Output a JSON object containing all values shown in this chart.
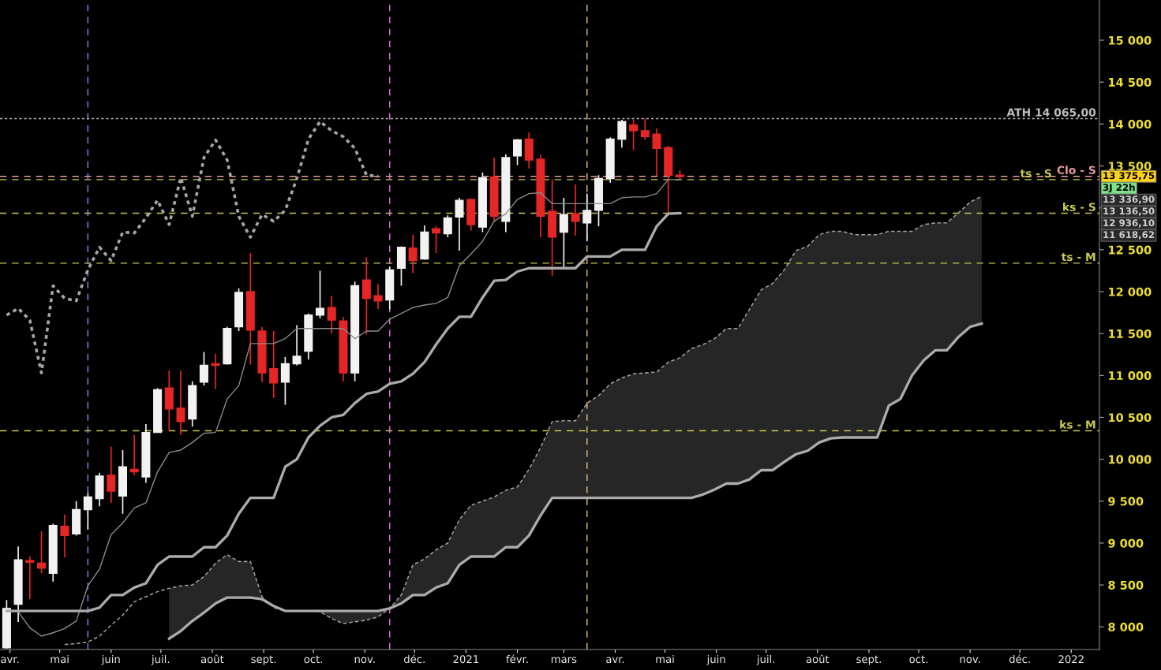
{
  "chart_data": {
    "type": "candlestick",
    "x": [
      "2020-03-30",
      "2020-04-06",
      "2020-04-13",
      "2020-04-20",
      "2020-04-27",
      "2020-05-04",
      "2020-05-11",
      "2020-05-18",
      "2020-05-25",
      "2020-06-01",
      "2020-06-08",
      "2020-06-15",
      "2020-06-22",
      "2020-06-29",
      "2020-07-06",
      "2020-07-13",
      "2020-07-20",
      "2020-07-27",
      "2020-08-03",
      "2020-08-10",
      "2020-08-17",
      "2020-08-24",
      "2020-08-31",
      "2020-09-07",
      "2020-09-14",
      "2020-09-21",
      "2020-09-28",
      "2020-10-05",
      "2020-10-12",
      "2020-10-19",
      "2020-10-26",
      "2020-11-02",
      "2020-11-09",
      "2020-11-16",
      "2020-11-23",
      "2020-11-30",
      "2020-12-07",
      "2020-12-14",
      "2020-12-21",
      "2020-12-28",
      "2021-01-04",
      "2021-01-11",
      "2021-01-18",
      "2021-01-25",
      "2021-02-01",
      "2021-02-08",
      "2021-02-15",
      "2021-02-22",
      "2021-03-01",
      "2021-03-08",
      "2021-03-15",
      "2021-03-22",
      "2021-03-29",
      "2021-04-05",
      "2021-04-12",
      "2021-04-19",
      "2021-04-26",
      "2021-05-03",
      "2021-05-10"
    ],
    "ohlc": [
      [
        7750,
        8320,
        7740,
        8220
      ],
      [
        8270,
        8960,
        8060,
        8800
      ],
      [
        8790,
        8840,
        8330,
        8770
      ],
      [
        8760,
        9140,
        8640,
        8700
      ],
      [
        8640,
        9230,
        8540,
        9210
      ],
      [
        9200,
        9340,
        8830,
        9090
      ],
      [
        9110,
        9500,
        9090,
        9400
      ],
      [
        9400,
        9600,
        9160,
        9550
      ],
      [
        9530,
        9840,
        9440,
        9800
      ],
      [
        9810,
        10150,
        9480,
        9620
      ],
      [
        9560,
        10110,
        9350,
        9910
      ],
      [
        9880,
        10290,
        9810,
        9850
      ],
      [
        9790,
        10420,
        9720,
        10320
      ],
      [
        10320,
        10850,
        10320,
        10830
      ],
      [
        10850,
        11060,
        10340,
        10600
      ],
      [
        10610,
        11060,
        10290,
        10450
      ],
      [
        10480,
        10930,
        10390,
        10880
      ],
      [
        10920,
        11280,
        10880,
        11120
      ],
      [
        11140,
        11260,
        10840,
        11120
      ],
      [
        11140,
        11580,
        11130,
        11560
      ],
      [
        11580,
        12040,
        11530,
        11990
      ],
      [
        12000,
        12460,
        11130,
        11540
      ],
      [
        11530,
        11580,
        10920,
        11030
      ],
      [
        11080,
        11530,
        10730,
        10910
      ],
      [
        10920,
        11220,
        10650,
        11140
      ],
      [
        11140,
        11600,
        11120,
        11230
      ],
      [
        11290,
        11740,
        11190,
        11720
      ],
      [
        11720,
        12250,
        11680,
        11800
      ],
      [
        11810,
        11950,
        11500,
        11660
      ],
      [
        11650,
        11700,
        10930,
        11030
      ],
      [
        11030,
        12120,
        10930,
        12070
      ],
      [
        12140,
        12410,
        11490,
        11920
      ],
      [
        11950,
        12090,
        11790,
        11890
      ],
      [
        11900,
        12300,
        11790,
        12260
      ],
      [
        12280,
        12540,
        12070,
        12530
      ],
      [
        12520,
        12680,
        12220,
        12370
      ],
      [
        12390,
        12790,
        12380,
        12710
      ],
      [
        12750,
        12780,
        12460,
        12700
      ],
      [
        12690,
        12910,
        12650,
        12880
      ],
      [
        12890,
        13120,
        12490,
        13090
      ],
      [
        13100,
        13110,
        12730,
        12800
      ],
      [
        12770,
        13420,
        12710,
        13360
      ],
      [
        13370,
        13600,
        12830,
        12900
      ],
      [
        12840,
        13640,
        12710,
        13600
      ],
      [
        13620,
        13820,
        13510,
        13810
      ],
      [
        13820,
        13900,
        13470,
        13570
      ],
      [
        13580,
        13630,
        12650,
        12900
      ],
      [
        12960,
        13340,
        12190,
        12650
      ],
      [
        12710,
        13120,
        12280,
        12920
      ],
      [
        12930,
        13280,
        12670,
        12840
      ],
      [
        12820,
        13170,
        12600,
        12970
      ],
      [
        12970,
        13390,
        12780,
        13350
      ],
      [
        13350,
        13840,
        13300,
        13820
      ],
      [
        13820,
        14050,
        13720,
        14030
      ],
      [
        13990,
        14050,
        13690,
        13920
      ],
      [
        13920,
        14065,
        13810,
        13850
      ],
      [
        13880,
        13950,
        13380,
        13710
      ],
      [
        13720,
        13740,
        12940,
        13390
      ],
      [
        13390,
        13450,
        13340,
        13375.75
      ]
    ],
    "colors": [
      "#f2f2f2",
      "#f2f2f2",
      "#e52626",
      "#e52626",
      "#f2f2f2",
      "#e52626",
      "#f2f2f2",
      "#f2f2f2",
      "#f2f2f2",
      "#e52626",
      "#f2f2f2",
      "#e52626",
      "#f2f2f2",
      "#f2f2f2",
      "#e52626",
      "#e52626",
      "#f2f2f2",
      "#f2f2f2",
      "#e52626",
      "#f2f2f2",
      "#f2f2f2",
      "#e52626",
      "#e52626",
      "#e52626",
      "#f2f2f2",
      "#f2f2f2",
      "#f2f2f2",
      "#f2f2f2",
      "#e52626",
      "#e52626",
      "#f2f2f2",
      "#e52626",
      "#e52626",
      "#f2f2f2",
      "#f2f2f2",
      "#e52626",
      "#f2f2f2",
      "#e52626",
      "#f2f2f2",
      "#f2f2f2",
      "#e52626",
      "#f2f2f2",
      "#e52626",
      "#f2f2f2",
      "#f2f2f2",
      "#e52626",
      "#e52626",
      "#e52626",
      "#f2f2f2",
      "#e52626",
      "#f2f2f2",
      "#f2f2f2",
      "#f2f2f2",
      "#f2f2f2",
      "#e52626",
      "#e52626",
      "#e52626",
      "#e52626",
      "#e52626"
    ],
    "series": [
      {
        "type": "line",
        "color": "#8c8c8c",
        "values": [
          null,
          8180,
          7990,
          7890,
          7930,
          7980,
          8070,
          8490,
          8690,
          9100,
          9240,
          9420,
          9480,
          9850,
          10080,
          10110,
          10200,
          10310,
          10320,
          10720,
          10880,
          11380,
          11380,
          11380,
          11440,
          11560,
          11560,
          11560,
          11560,
          11560,
          11440,
          11530,
          11530,
          11670,
          11740,
          11810,
          11840,
          11860,
          11930,
          12310,
          12450,
          12600,
          12840,
          12930,
          13100,
          13170,
          13180,
          13050,
          13050,
          13050,
          13050,
          13050,
          13050,
          13120,
          13130,
          13130,
          13170,
          13336.9,
          13336.9
        ]
      },
      {
        "type": "line",
        "color": "#ababab",
        "values": [
          8190,
          8190,
          8190,
          8190,
          8190,
          8190,
          8190,
          8190,
          8230,
          8380,
          8380,
          8470,
          8520,
          8740,
          8840,
          8840,
          8840,
          8950,
          8950,
          9090,
          9350,
          9540,
          9540,
          9540,
          9910,
          10000,
          10260,
          10400,
          10500,
          10530,
          10670,
          10780,
          10810,
          10900,
          10930,
          11020,
          11160,
          11370,
          11560,
          11700,
          11700,
          11930,
          12130,
          12140,
          12240,
          12280,
          12280,
          12280,
          12280,
          12280,
          12420,
          12420,
          12420,
          12500,
          12500,
          12500,
          12780,
          12930,
          12936.1
        ]
      },
      {
        "type": "line",
        "color": "#a6a6a6",
        "line_style": "dotted",
        "x": [
          "2020-03-30",
          "2020-04-06",
          "2020-04-13",
          "2020-04-20",
          "2020-04-27",
          "2020-05-04",
          "2020-05-11",
          "2020-05-18",
          "2020-05-25",
          "2020-06-01",
          "2020-06-08",
          "2020-06-15",
          "2020-06-22",
          "2020-06-29",
          "2020-07-06",
          "2020-07-13",
          "2020-07-20",
          "2020-07-27",
          "2020-08-03",
          "2020-08-10",
          "2020-08-17",
          "2020-08-24",
          "2020-08-31",
          "2020-09-07",
          "2020-09-14",
          "2020-09-21",
          "2020-09-28",
          "2020-10-05",
          "2020-10-12",
          "2020-10-19",
          "2020-10-26",
          "2020-11-02",
          "2020-11-09"
        ],
        "values": [
          11720,
          11800,
          11660,
          11030,
          12070,
          11920,
          11890,
          12260,
          12530,
          12370,
          12710,
          12700,
          12880,
          13090,
          12800,
          13360,
          12900,
          13600,
          13810,
          13570,
          12900,
          12650,
          12920,
          12840,
          12970,
          13350,
          13820,
          14030,
          13920,
          13850,
          13710,
          13390,
          13375.75
        ]
      },
      {
        "type": "line",
        "color": "#a0a0a0",
        "line_style": "dashed",
        "x": [
          "2020-05-04",
          "2020-05-11",
          "2020-05-18",
          "2020-05-25",
          "2020-06-01",
          "2020-06-08",
          "2020-06-15",
          "2020-06-22",
          "2020-06-29",
          "2020-07-06",
          "2020-07-13",
          "2020-07-20",
          "2020-07-27",
          "2020-08-03",
          "2020-08-10",
          "2020-08-17",
          "2020-08-24",
          "2020-08-31",
          "2020-09-07",
          "2020-09-14",
          "2020-09-21",
          "2020-09-28",
          "2020-10-05",
          "2020-10-12",
          "2020-10-19",
          "2020-10-26",
          "2020-11-02",
          "2020-11-09",
          "2020-11-16",
          "2020-11-23",
          "2020-11-30",
          "2020-12-07",
          "2020-12-14",
          "2020-12-21",
          "2020-12-28",
          "2021-01-04",
          "2021-01-11",
          "2021-01-18",
          "2021-01-25",
          "2021-02-01",
          "2021-02-08",
          "2021-02-15",
          "2021-02-22",
          "2021-03-01",
          "2021-03-08",
          "2021-03-15",
          "2021-03-22",
          "2021-03-29",
          "2021-04-05",
          "2021-04-12",
          "2021-04-19",
          "2021-04-26",
          "2021-05-03",
          "2021-05-10",
          "2021-05-17",
          "2021-05-24",
          "2021-05-31",
          "2021-06-07",
          "2021-06-14",
          "2021-06-21",
          "2021-06-28",
          "2021-07-05",
          "2021-07-12",
          "2021-07-19",
          "2021-07-26",
          "2021-08-02",
          "2021-08-09",
          "2021-08-16",
          "2021-08-23",
          "2021-08-30",
          "2021-09-06",
          "2021-09-13",
          "2021-09-20",
          "2021-09-27",
          "2021-10-04",
          "2021-10-11",
          "2021-10-18",
          "2021-10-25",
          "2021-11-01",
          "2021-11-08"
        ],
        "values": [
          7790,
          7800,
          7820,
          7890,
          8020,
          8140,
          8300,
          8360,
          8420,
          8460,
          8490,
          8500,
          8600,
          8760,
          8860,
          8780,
          8780,
          8360,
          8230,
          8190,
          8190,
          8190,
          8180,
          8100,
          8040,
          8060,
          8080,
          8120,
          8220,
          8380,
          8740,
          8810,
          8920,
          9000,
          9280,
          9450,
          9500,
          9550,
          9630,
          9670,
          9880,
          10140,
          10450,
          10460,
          10460,
          10670,
          10760,
          10900,
          10970,
          11020,
          11030,
          11040,
          11160,
          11210,
          11320,
          11370,
          11440,
          11560,
          11560,
          11790,
          12020,
          12100,
          12260,
          12490,
          12540,
          12680,
          12720,
          12720,
          12680,
          12680,
          12680,
          12720,
          12720,
          12720,
          12800,
          12820,
          12820,
          12940,
          13070,
          13136.5
        ]
      },
      {
        "type": "line",
        "color": "#ababab",
        "x": [
          "2020-07-06",
          "2020-07-13",
          "2020-07-20",
          "2020-07-27",
          "2020-08-03",
          "2020-08-10",
          "2020-08-17",
          "2020-08-24",
          "2020-08-31",
          "2020-09-07",
          "2020-09-14",
          "2020-09-21",
          "2020-09-28",
          "2020-10-05",
          "2020-10-12",
          "2020-10-19",
          "2020-10-26",
          "2020-11-02",
          "2020-11-09",
          "2020-11-16",
          "2020-11-23",
          "2020-11-30",
          "2020-12-07",
          "2020-12-14",
          "2020-12-21",
          "2020-12-28",
          "2021-01-04",
          "2021-01-11",
          "2021-01-18",
          "2021-01-25",
          "2021-02-01",
          "2021-02-08",
          "2021-02-15",
          "2021-02-22",
          "2021-03-01",
          "2021-03-08",
          "2021-03-15",
          "2021-03-22",
          "2021-03-29",
          "2021-04-05",
          "2021-04-12",
          "2021-04-19",
          "2021-04-26",
          "2021-05-03",
          "2021-05-10",
          "2021-05-17",
          "2021-05-24",
          "2021-05-31",
          "2021-06-07",
          "2021-06-14",
          "2021-06-21",
          "2021-06-28",
          "2021-07-05",
          "2021-07-12",
          "2021-07-19",
          "2021-07-26",
          "2021-08-02",
          "2021-08-09",
          "2021-08-16",
          "2021-08-23",
          "2021-08-30",
          "2021-09-06",
          "2021-09-13",
          "2021-09-20",
          "2021-09-27",
          "2021-10-04",
          "2021-10-11",
          "2021-10-18",
          "2021-10-25",
          "2021-11-01",
          "2021-11-08"
        ],
        "values": [
          7860,
          7950,
          8070,
          8170,
          8280,
          8350,
          8350,
          8350,
          8330,
          8250,
          8190,
          8190,
          8190,
          8190,
          8190,
          8190,
          8190,
          8190,
          8190,
          8220,
          8280,
          8380,
          8380,
          8470,
          8520,
          8740,
          8840,
          8840,
          8840,
          8950,
          8950,
          9090,
          9330,
          9540,
          9540,
          9540,
          9540,
          9540,
          9540,
          9540,
          9540,
          9540,
          9540,
          9540,
          9540,
          9540,
          9580,
          9640,
          9710,
          9710,
          9760,
          9870,
          9870,
          9970,
          10060,
          10100,
          10200,
          10250,
          10260,
          10260,
          10260,
          10260,
          10640,
          10720,
          11000,
          11180,
          11300,
          11300,
          11460,
          11580,
          11618.62
        ],
        "lower": [
          7860,
          7950,
          8070,
          8170,
          8280,
          8350,
          8350,
          8350,
          8330,
          8250,
          8190,
          8190,
          8190,
          8190,
          8190,
          8190,
          8190,
          8190,
          8190,
          8220,
          8280,
          8380,
          8380,
          8470,
          8520,
          8740,
          8840,
          8840,
          8840,
          8950,
          8950,
          9090,
          9330,
          9540,
          9540,
          9540,
          9540,
          9540,
          9540,
          9540,
          9540,
          9540,
          9540,
          9540,
          9540,
          9540,
          9580,
          9640,
          9710,
          9710,
          9760,
          9870,
          9870,
          9970,
          10060,
          10100,
          10200,
          10250,
          10260,
          10260,
          10260,
          10260,
          10640,
          10720,
          11000,
          11180,
          11300,
          11300,
          11460,
          11580,
          11618.62
        ],
        "upper": [
          8460,
          8490,
          8500,
          8600,
          8760,
          8860,
          8780,
          8780,
          8360,
          8230,
          8190,
          8190,
          8190,
          8180,
          8100,
          8040,
          8060,
          8080,
          8120,
          8220,
          8380,
          8740,
          8810,
          8920,
          9000,
          9280,
          9450,
          9500,
          9550,
          9630,
          9670,
          9880,
          10140,
          10450,
          10460,
          10460,
          10670,
          10760,
          10900,
          10970,
          11020,
          11030,
          11040,
          11160,
          11210,
          11320,
          11370,
          11440,
          11560,
          11560,
          11790,
          12020,
          12100,
          12260,
          12490,
          12540,
          12680,
          12720,
          12720,
          12680,
          12680,
          12680,
          12720,
          12720,
          12720,
          12800,
          12820,
          12820,
          12940,
          13070,
          13136.5
        ]
      }
    ],
    "xlim": [
      "2020-03-26",
      "2022-01-18"
    ],
    "xticks": [
      {
        "value": "2020-04-01",
        "label": "avr."
      },
      {
        "value": "2020-05-01",
        "label": "mai"
      },
      {
        "value": "2020-06-01",
        "label": "juin"
      },
      {
        "value": "2020-07-01",
        "label": "juil."
      },
      {
        "value": "2020-08-01",
        "label": "août"
      },
      {
        "value": "2020-09-01",
        "label": "sept."
      },
      {
        "value": "2020-10-01",
        "label": "oct."
      },
      {
        "value": "2020-11-01",
        "label": "nov."
      },
      {
        "value": "2020-12-01",
        "label": "déc."
      },
      {
        "value": "2021-01-01",
        "label": "2021"
      },
      {
        "value": "2021-02-01",
        "label": "févr."
      },
      {
        "value": "2021-03-01",
        "label": "mars"
      },
      {
        "value": "2021-04-01",
        "label": "avr."
      },
      {
        "value": "2021-05-01",
        "label": "mai"
      },
      {
        "value": "2021-06-01",
        "label": "juin"
      },
      {
        "value": "2021-07-01",
        "label": "juil."
      },
      {
        "value": "2021-08-01",
        "label": "août"
      },
      {
        "value": "2021-09-01",
        "label": "sept."
      },
      {
        "value": "2021-10-01",
        "label": "oct."
      },
      {
        "value": "2021-11-01",
        "label": "nov."
      },
      {
        "value": "2021-12-01",
        "label": "déc."
      },
      {
        "value": "2022-01-01",
        "label": "2022"
      }
    ],
    "ylim": [
      7730,
      15480
    ],
    "yticks": [
      {
        "value": 8000,
        "label": "8 000"
      },
      {
        "value": 8500,
        "label": "8 500"
      },
      {
        "value": 9000,
        "label": "9 000"
      },
      {
        "value": 9500,
        "label": "9 500"
      },
      {
        "value": 10000,
        "label": "10 000"
      },
      {
        "value": 10500,
        "label": "10 500"
      },
      {
        "value": 11000,
        "label": "11 000"
      },
      {
        "value": 11500,
        "label": "11 500"
      },
      {
        "value": 12000,
        "label": "12 000"
      },
      {
        "value": 12500,
        "label": "12 500"
      },
      {
        "value": 13000,
        "label": null
      },
      {
        "value": 13500,
        "label": "13 500"
      },
      {
        "value": 14000,
        "label": "14 000"
      },
      {
        "value": 14500,
        "label": "14 500"
      },
      {
        "value": 15000,
        "label": "15 000"
      }
    ],
    "ref_lines": [
      {
        "axis": "y",
        "value": 14065,
        "label": "ATH 14 065,00",
        "color": "#bdbdbd",
        "line_style": "dotted"
      },
      {
        "axis": "y",
        "value": 13375.75,
        "label": "Clo - S",
        "color": "#e89a9a",
        "line_style": "dashed"
      },
      {
        "axis": "y",
        "value": 13336.9,
        "label": "ts - S",
        "color": "#c8c850",
        "line_style": "dashed"
      },
      {
        "axis": "y",
        "value": 12936.1,
        "label": "ks - S",
        "color": "#c8c850",
        "line_style": "dashed"
      },
      {
        "axis": "y",
        "value": 12340,
        "label": "ts - M",
        "color": "#c8c850",
        "line_style": "dashed"
      },
      {
        "axis": "y",
        "value": 10340,
        "label": "ks - M",
        "color": "#c8c850",
        "line_style": "dashed"
      },
      {
        "axis": "x",
        "value": "2020-05-18",
        "color": "#7f8fe8",
        "line_style": "dashed"
      },
      {
        "axis": "x",
        "value": "2020-11-16",
        "color": "#e070e0",
        "line_style": "dashed"
      },
      {
        "axis": "x",
        "value": "2021-03-15",
        "color": "#e8c080",
        "line_style": "dashed"
      }
    ],
    "annotations": [
      "13 375,75",
      "3J 22h",
      "13 336,90",
      "13 136,50",
      "12 936,10",
      "11 618,62"
    ]
  }
}
